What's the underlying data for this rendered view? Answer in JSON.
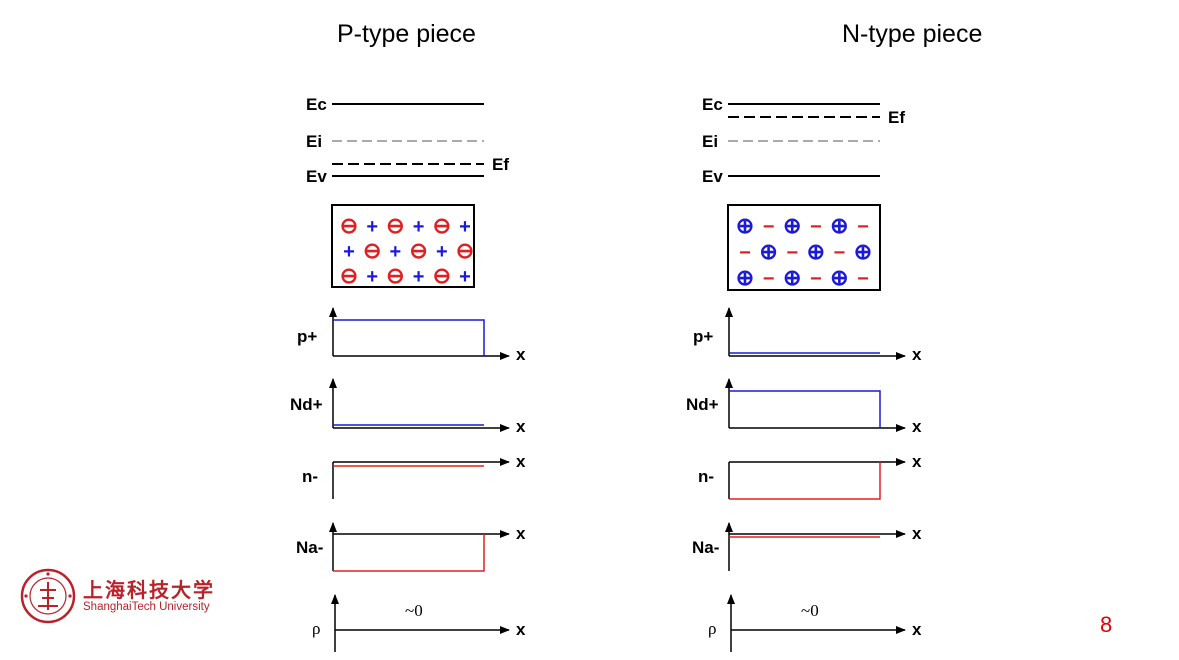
{
  "titles": {
    "p": "P-type piece",
    "n": "N-type piece"
  },
  "bands": {
    "ec": "Ec",
    "ei": "Ei",
    "ev": "Ev",
    "ef": "Ef"
  },
  "plot_labels": {
    "p": "p+",
    "nd": "Nd+",
    "n": "n-",
    "na": "Na-",
    "rho": "ρ",
    "x": "x",
    "approx_zero": "~0"
  },
  "lattice": {
    "p_rows": [
      [
        "⊖",
        "+",
        "⊖",
        "+",
        "⊖",
        "+"
      ],
      [
        "+",
        "⊖",
        "+",
        "⊖",
        "+",
        "⊖"
      ],
      [
        "⊖",
        "+",
        "⊖",
        "+",
        "⊖",
        "+"
      ]
    ],
    "n_rows": [
      [
        "⊕",
        "−",
        "⊕",
        "−",
        "⊕",
        "−"
      ],
      [
        "−",
        "⊕",
        "−",
        "⊕",
        "−",
        "⊕"
      ],
      [
        "⊕",
        "−",
        "⊕",
        "−",
        "⊕",
        "−"
      ]
    ]
  },
  "colors": {
    "positive": "#1a1ad8",
    "negative": "#e02020",
    "axis": "#000000",
    "accent": "#b8232a"
  },
  "logo": {
    "cn": "上海科技大学",
    "en": "ShanghaiTech University"
  },
  "page_number": "8"
}
